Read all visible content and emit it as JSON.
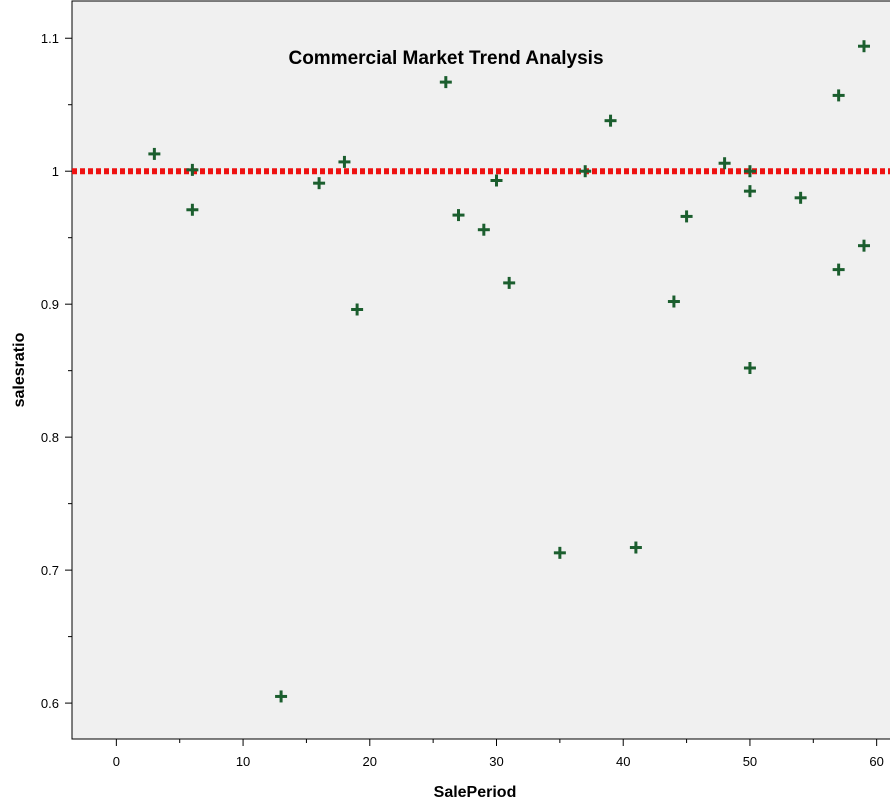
{
  "chart_data": {
    "type": "scatter",
    "title": "Commercial Market Trend Analysis",
    "xlabel": "SalePeriod",
    "ylabel": "salesratio",
    "xlim": [
      -3.5,
      62
    ],
    "ylim": [
      0.573,
      1.128
    ],
    "x_ticks": [
      0,
      10,
      20,
      30,
      40,
      50,
      60
    ],
    "y_ticks": [
      0.6,
      0.7,
      0.8,
      0.9,
      1,
      1.1
    ],
    "x_tick_labels": [
      "0",
      "10",
      "20",
      "30",
      "40",
      "50",
      "60"
    ],
    "y_tick_labels": [
      "0.6",
      "0.7",
      "0.8",
      "0.9",
      "1",
      "1.1"
    ],
    "reference_line": {
      "y": 1.0,
      "color": "#ee1111",
      "style": "dotted"
    },
    "marker": {
      "shape": "plus",
      "color": "#1b5e2e"
    },
    "plot_background": "#f0f0f0",
    "grid": false,
    "series": [
      {
        "points": [
          {
            "x": 3,
            "y": 1.013
          },
          {
            "x": 6,
            "y": 1.001
          },
          {
            "x": 6,
            "y": 0.971
          },
          {
            "x": 13,
            "y": 0.605
          },
          {
            "x": 16,
            "y": 0.991
          },
          {
            "x": 18,
            "y": 1.007
          },
          {
            "x": 19,
            "y": 0.896
          },
          {
            "x": 26,
            "y": 1.067
          },
          {
            "x": 27,
            "y": 0.967
          },
          {
            "x": 29,
            "y": 0.956
          },
          {
            "x": 30,
            "y": 0.993
          },
          {
            "x": 31,
            "y": 0.916
          },
          {
            "x": 35,
            "y": 0.713
          },
          {
            "x": 37,
            "y": 1.0
          },
          {
            "x": 39,
            "y": 1.038
          },
          {
            "x": 41,
            "y": 0.717
          },
          {
            "x": 44,
            "y": 0.902
          },
          {
            "x": 45,
            "y": 0.966
          },
          {
            "x": 48,
            "y": 1.006
          },
          {
            "x": 50,
            "y": 1.0
          },
          {
            "x": 50,
            "y": 0.985
          },
          {
            "x": 50,
            "y": 0.852
          },
          {
            "x": 54,
            "y": 0.98
          },
          {
            "x": 57,
            "y": 1.057
          },
          {
            "x": 57,
            "y": 0.926
          },
          {
            "x": 59,
            "y": 1.094
          },
          {
            "x": 59,
            "y": 0.944
          }
        ]
      }
    ]
  }
}
